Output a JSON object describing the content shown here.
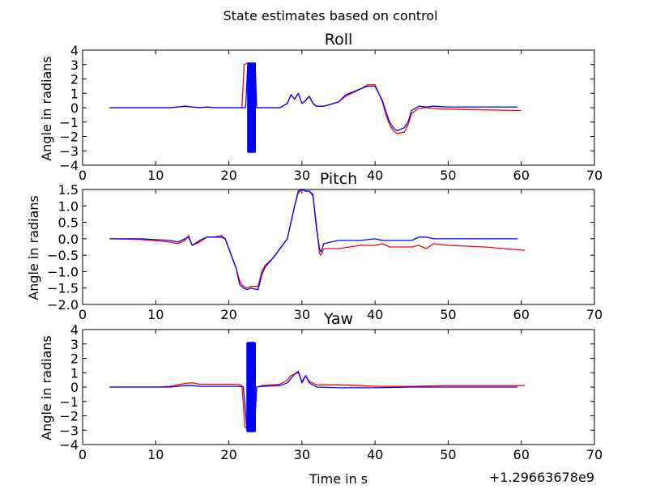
{
  "figure": {
    "suptitle": "State estimates based on control",
    "xlabel": "Time in s",
    "x_offset_label": "+1.29663678e9"
  },
  "colors": {
    "series_a": "#ff0000",
    "series_b": "#0000ff",
    "axes": "#000000",
    "background": "#ffffff"
  },
  "chart_data": [
    {
      "type": "line",
      "title": "Roll",
      "ylabel": "Angle in radians",
      "xlim": [
        0,
        70
      ],
      "ylim": [
        -4,
        4
      ],
      "xticks": [
        0,
        10,
        20,
        30,
        40,
        50,
        60,
        70
      ],
      "yticks": [
        -4,
        -3,
        -2,
        -1,
        0,
        1,
        2,
        3,
        4
      ],
      "ytick_labels": [
        "−4",
        "−3",
        "−2",
        "−1",
        "0",
        "1",
        "2",
        "3",
        "4"
      ],
      "grid": false,
      "series": [
        {
          "color": "#ff0000",
          "x": [
            3.7,
            10,
            12,
            13,
            14,
            15,
            16,
            17,
            18,
            19,
            20,
            21,
            21.8,
            22.1,
            22.5,
            23.5,
            23.8,
            24.5,
            27,
            28,
            28.5,
            29,
            29.5,
            30,
            30.5,
            31,
            31.5,
            32,
            33,
            35,
            36,
            38,
            39,
            40,
            41,
            41.5,
            42,
            42.5,
            43,
            44,
            44.5,
            45,
            46,
            47,
            48,
            50,
            55,
            60
          ],
          "y": [
            0,
            0,
            0,
            0.05,
            0.1,
            0.05,
            0,
            0.05,
            0,
            0,
            0,
            0,
            0,
            3.0,
            3.1,
            3.1,
            0,
            0,
            0,
            0.3,
            0.9,
            0.6,
            1.0,
            0.3,
            0.5,
            0.8,
            0.3,
            0.1,
            0.1,
            0.4,
            0.8,
            1.3,
            1.6,
            1.6,
            0.4,
            -0.5,
            -1.2,
            -1.6,
            -1.8,
            -1.7,
            -1.2,
            -0.4,
            -0.05,
            0,
            -0.05,
            -0.1,
            -0.15,
            -0.2
          ]
        },
        {
          "color": "#0000ff",
          "x": [
            3.7,
            10,
            12,
            13,
            14,
            15,
            16,
            17,
            18,
            19,
            20,
            21,
            22,
            22.3,
            22.6,
            23.6,
            23.8,
            24.5,
            27,
            28,
            28.5,
            29,
            29.5,
            30,
            30.5,
            31,
            31.5,
            32,
            33,
            35,
            36,
            38,
            39,
            40,
            41,
            41.5,
            42,
            42.5,
            43,
            44,
            44.5,
            45,
            46,
            47,
            48,
            50,
            55,
            59.5
          ],
          "y": [
            0,
            0,
            0,
            0.05,
            0.1,
            0.05,
            0,
            0.05,
            0,
            0,
            0,
            0,
            0,
            0,
            3.1,
            3.1,
            0,
            0,
            0,
            0.3,
            0.9,
            0.6,
            1.0,
            0.3,
            0.5,
            0.8,
            0.3,
            0.1,
            0.1,
            0.4,
            0.9,
            1.3,
            1.5,
            1.5,
            0.5,
            -0.3,
            -1.0,
            -1.4,
            -1.6,
            -1.4,
            -1.0,
            -0.2,
            0.1,
            0.05,
            0.1,
            0.05,
            0.05,
            0.05
          ]
        }
      ],
      "spikes": [
        {
          "color": "#0000ff",
          "x_from": 22.6,
          "x_to": 23.6,
          "y_min": -3.1,
          "y_max": 3.1
        }
      ]
    },
    {
      "type": "line",
      "title": "Pitch",
      "ylabel": "Angle in radians",
      "xlim": [
        0,
        70
      ],
      "ylim": [
        -2.0,
        1.5
      ],
      "xticks": [
        0,
        10,
        20,
        30,
        40,
        50,
        60,
        70
      ],
      "yticks": [
        -2.0,
        -1.5,
        -1.0,
        -0.5,
        0.0,
        0.5,
        1.0,
        1.5
      ],
      "ytick_labels": [
        "−2.0",
        "−1.5",
        "−1.0",
        "−0.5",
        "0.0",
        "0.5",
        "1.0",
        "1.5"
      ],
      "grid": false,
      "series": [
        {
          "color": "#ff0000",
          "x": [
            3.7,
            8,
            12,
            13,
            13.5,
            14,
            14.5,
            15,
            16,
            17,
            18,
            19,
            19.5,
            20,
            21,
            21.5,
            22,
            22.5,
            23,
            24,
            24.5,
            25,
            26,
            27,
            28,
            28.5,
            29,
            29.5,
            30,
            30.5,
            31,
            31.5,
            32,
            32.4,
            32.6,
            33,
            35,
            38,
            40,
            41,
            42,
            45,
            46,
            47,
            48,
            50,
            55,
            60.5
          ],
          "y": [
            0,
            -0.02,
            -0.1,
            -0.15,
            -0.1,
            -0.05,
            0.1,
            -0.2,
            -0.1,
            0.05,
            0.05,
            0.1,
            0,
            -0.3,
            -0.9,
            -1.3,
            -1.45,
            -1.5,
            -1.45,
            -1.45,
            -1.0,
            -0.8,
            -0.6,
            -0.3,
            0,
            0.5,
            1.0,
            1.4,
            1.5,
            1.45,
            1.45,
            1.3,
            0.4,
            -0.45,
            -0.5,
            -0.3,
            -0.3,
            -0.2,
            -0.2,
            -0.15,
            -0.25,
            -0.25,
            -0.2,
            -0.3,
            -0.15,
            -0.2,
            -0.25,
            -0.35
          ]
        },
        {
          "color": "#0000ff",
          "x": [
            3.7,
            8,
            12,
            13,
            13.5,
            14,
            14.5,
            15,
            16,
            17,
            18,
            19,
            19.5,
            20,
            21,
            21.5,
            22,
            22.5,
            23,
            24,
            24.5,
            25,
            26,
            27,
            28,
            28.5,
            29,
            29.5,
            30,
            30.5,
            31,
            31.5,
            32,
            32.4,
            32.6,
            33,
            35,
            38,
            40,
            41,
            42,
            45,
            46,
            47,
            48,
            50,
            55,
            59.5
          ],
          "y": [
            0,
            0,
            -0.05,
            -0.1,
            -0.05,
            0,
            0.05,
            -0.2,
            -0.05,
            0.05,
            0.05,
            0.05,
            0,
            -0.3,
            -0.9,
            -1.4,
            -1.5,
            -1.55,
            -1.5,
            -1.55,
            -1.1,
            -0.85,
            -0.6,
            -0.3,
            0,
            0.5,
            1.0,
            1.45,
            1.5,
            1.45,
            1.45,
            1.35,
            0.3,
            -0.3,
            -0.4,
            -0.15,
            -0.05,
            -0.05,
            0,
            -0.05,
            -0.05,
            -0.05,
            0.05,
            0.05,
            0,
            0,
            0,
            0
          ]
        }
      ]
    },
    {
      "type": "line",
      "title": "Yaw",
      "ylabel": "Angle in radians",
      "xlim": [
        0,
        70
      ],
      "ylim": [
        -4,
        4
      ],
      "xticks": [
        0,
        10,
        20,
        30,
        40,
        50,
        60,
        70
      ],
      "yticks": [
        -4,
        -3,
        -2,
        -1,
        0,
        1,
        2,
        3,
        4
      ],
      "ytick_labels": [
        "−4",
        "−3",
        "−2",
        "−1",
        "0",
        "1",
        "2",
        "3",
        "4"
      ],
      "grid": false,
      "series": [
        {
          "color": "#ff0000",
          "x": [
            3.7,
            10,
            12,
            13,
            14,
            15,
            16,
            18,
            20,
            21,
            21.5,
            21.8,
            22.2,
            23.5,
            23.8,
            24.5,
            27,
            28,
            28.5,
            29,
            29.5,
            30,
            30.5,
            31,
            32,
            35,
            38,
            40,
            45,
            50,
            55,
            60.5
          ],
          "y": [
            0,
            0,
            0.05,
            0.15,
            0.25,
            0.3,
            0.2,
            0.2,
            0.2,
            0.2,
            0.15,
            0.1,
            -2.8,
            -3.0,
            0,
            0.1,
            0.2,
            0.5,
            0.8,
            0.9,
            1.0,
            0.4,
            0.8,
            0.4,
            0.15,
            0.15,
            0.1,
            0.05,
            0.05,
            0.1,
            0.1,
            0.1
          ]
        },
        {
          "color": "#0000ff",
          "x": [
            3.7,
            10,
            12,
            13,
            14,
            15,
            16,
            18,
            20,
            21,
            21.5,
            22,
            22.5,
            23.5,
            23.8,
            24.5,
            27,
            28,
            28.5,
            29,
            29.5,
            30,
            30.5,
            31,
            32,
            35,
            38,
            40,
            45,
            50,
            55,
            59.5
          ],
          "y": [
            0,
            0,
            0,
            0.05,
            0.1,
            0.1,
            0.05,
            0.05,
            0.05,
            0.05,
            0.05,
            0,
            -3.0,
            -3.0,
            0,
            0.05,
            0.1,
            0.3,
            0.6,
            0.9,
            1.1,
            0.3,
            0.8,
            0.3,
            0,
            -0.05,
            -0.05,
            -0.05,
            0,
            0,
            0,
            0
          ]
        }
      ],
      "spikes": [
        {
          "color": "#0000ff",
          "x_from": 22.5,
          "x_to": 23.6,
          "y_min": -3.1,
          "y_max": 3.1
        }
      ]
    }
  ]
}
